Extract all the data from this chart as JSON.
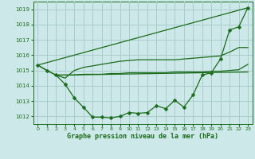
{
  "title": "Graphe pression niveau de la mer (hPa)",
  "bg_color": "#cce8e8",
  "grid_color": "#aacccc",
  "line_color": "#1a6b1a",
  "xlim": [
    -0.5,
    23.5
  ],
  "ylim": [
    1011.5,
    1019.5
  ],
  "yticks": [
    1012,
    1013,
    1014,
    1015,
    1016,
    1017,
    1018,
    1019
  ],
  "xticks": [
    0,
    1,
    2,
    3,
    4,
    5,
    6,
    7,
    8,
    9,
    10,
    11,
    12,
    13,
    14,
    15,
    16,
    17,
    18,
    19,
    20,
    21,
    22,
    23
  ],
  "series": {
    "line1_x": [
      0,
      1,
      2,
      3,
      4,
      5,
      6,
      7,
      8,
      9,
      10,
      11,
      12,
      13,
      14,
      15,
      16,
      17,
      18,
      19,
      20,
      21,
      22,
      23
    ],
    "line1_y": [
      1015.35,
      1015.0,
      1014.7,
      1014.1,
      1013.2,
      1012.6,
      1011.95,
      1011.95,
      1011.9,
      1012.0,
      1012.25,
      1012.2,
      1012.25,
      1012.7,
      1012.5,
      1013.05,
      1012.6,
      1013.4,
      1014.7,
      1014.85,
      1015.75,
      1017.65,
      1017.85,
      1019.1
    ],
    "line2_x": [
      0,
      1,
      2,
      3,
      23
    ],
    "line2_y": [
      1015.35,
      1015.0,
      1014.7,
      1014.7,
      1014.9
    ],
    "line3_x": [
      2,
      3,
      4,
      5,
      6,
      7,
      8,
      9,
      10,
      11,
      12,
      13,
      14,
      15,
      16,
      17,
      18,
      19,
      20,
      21,
      22,
      23
    ],
    "line3_y": [
      1014.7,
      1014.7,
      1014.7,
      1014.75,
      1014.75,
      1014.75,
      1014.8,
      1014.8,
      1014.85,
      1014.85,
      1014.85,
      1014.85,
      1014.85,
      1014.9,
      1014.9,
      1014.9,
      1014.9,
      1014.95,
      1014.95,
      1015.0,
      1015.05,
      1015.4
    ],
    "line4_x": [
      2,
      3,
      4,
      5,
      6,
      7,
      8,
      9,
      10,
      11,
      12,
      13,
      14,
      15,
      16,
      17,
      18,
      19,
      20,
      21,
      22,
      23
    ],
    "line4_y": [
      1014.7,
      1014.5,
      1015.0,
      1015.2,
      1015.3,
      1015.4,
      1015.5,
      1015.6,
      1015.65,
      1015.7,
      1015.7,
      1015.7,
      1015.7,
      1015.7,
      1015.75,
      1015.8,
      1015.85,
      1015.9,
      1015.95,
      1016.2,
      1016.5,
      1016.5
    ],
    "line5_x": [
      0,
      23
    ],
    "line5_y": [
      1015.35,
      1019.1
    ]
  }
}
